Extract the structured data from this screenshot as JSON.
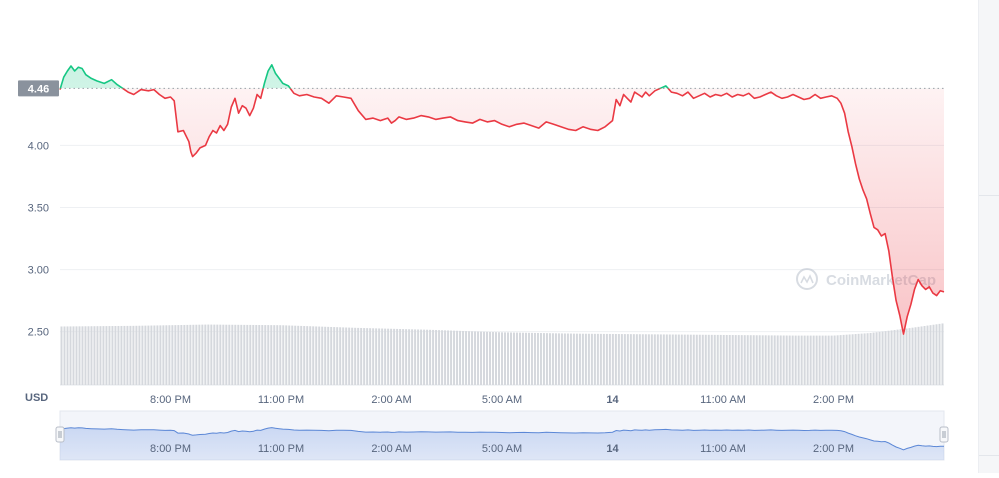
{
  "chart_data": {
    "type": "line",
    "currency_label": "USD",
    "reference_value": 4.46,
    "reference_label": "4.46",
    "y_ticks": [
      {
        "value": 4.0,
        "label": "4.00"
      },
      {
        "value": 3.5,
        "label": "3.50"
      },
      {
        "value": 3.0,
        "label": "3.00"
      },
      {
        "value": 2.5,
        "label": "2.50"
      }
    ],
    "ylim": [
      2.07,
      4.93
    ],
    "x_ticks": [
      {
        "t": 3,
        "label": "8:00 PM"
      },
      {
        "t": 6,
        "label": "11:00 PM"
      },
      {
        "t": 9,
        "label": "2:00 AM"
      },
      {
        "t": 12,
        "label": "5:00 AM"
      },
      {
        "t": 15,
        "label": "14"
      },
      {
        "t": 18,
        "label": "11:00 AM"
      },
      {
        "t": 21,
        "label": "2:00 PM"
      }
    ],
    "x_range_hours": [
      0,
      24
    ],
    "watermark": "CoinMarketCap",
    "colors": {
      "up": "#16c784",
      "down": "#ea3943",
      "volume": "#d5d8dd",
      "navigator": "#5b87d6"
    },
    "series": [
      {
        "x": [
          0,
          0.1,
          0.2,
          0.3,
          0.4,
          0.5,
          0.6,
          0.7,
          0.85,
          1.0,
          1.2,
          1.4,
          1.55,
          1.7,
          1.85,
          2.0,
          2.2,
          2.4,
          2.55,
          2.7,
          2.85,
          3.0,
          3.1,
          3.2,
          3.35,
          3.5,
          3.55,
          3.6,
          3.7,
          3.8,
          3.95,
          4.05,
          4.15,
          4.25,
          4.35,
          4.45,
          4.55,
          4.65,
          4.75,
          4.85,
          4.95,
          5.05,
          5.15,
          5.25,
          5.35,
          5.45,
          5.55,
          5.65,
          5.75,
          5.85,
          5.95,
          6.05,
          6.2,
          6.35,
          6.5,
          6.7,
          6.9,
          7.1,
          7.3,
          7.5,
          7.7,
          7.9,
          8.1,
          8.3,
          8.5,
          8.7,
          8.9,
          9.0,
          9.1,
          9.2,
          9.4,
          9.6,
          9.8,
          10.0,
          10.2,
          10.4,
          10.6,
          10.8,
          11.0,
          11.2,
          11.4,
          11.6,
          11.8,
          12.0,
          12.2,
          12.4,
          12.6,
          12.8,
          13.0,
          13.2,
          13.4,
          13.6,
          13.8,
          14.0,
          14.2,
          14.4,
          14.6,
          14.8,
          15.0,
          15.1,
          15.2,
          15.3,
          15.4,
          15.5,
          15.6,
          15.7,
          15.8,
          15.9,
          16.0,
          16.15,
          16.3,
          16.45,
          16.6,
          16.75,
          16.9,
          17.05,
          17.2,
          17.35,
          17.5,
          17.65,
          17.8,
          17.95,
          18.1,
          18.25,
          18.4,
          18.55,
          18.7,
          18.85,
          19.0,
          19.15,
          19.3,
          19.45,
          19.6,
          19.75,
          19.9,
          20.05,
          20.2,
          20.35,
          20.5,
          20.65,
          20.8,
          20.95,
          21.1,
          21.2,
          21.3,
          21.4,
          21.5,
          21.6,
          21.7,
          21.8,
          21.9,
          22.0,
          22.1,
          22.2,
          22.3,
          22.4,
          22.5,
          22.6,
          22.7,
          22.8,
          22.9,
          23.0,
          23.1,
          23.2,
          23.3,
          23.4,
          23.5,
          23.6,
          23.7,
          23.8,
          23.9,
          24.0
        ],
        "values": [
          4.45,
          4.55,
          4.6,
          4.64,
          4.6,
          4.63,
          4.62,
          4.57,
          4.54,
          4.52,
          4.5,
          4.53,
          4.49,
          4.46,
          4.43,
          4.41,
          4.45,
          4.44,
          4.45,
          4.41,
          4.38,
          4.39,
          4.36,
          4.11,
          4.12,
          4.03,
          3.95,
          3.91,
          3.94,
          3.98,
          4.0,
          4.07,
          4.12,
          4.1,
          4.16,
          4.12,
          4.17,
          4.31,
          4.38,
          4.26,
          4.32,
          4.3,
          4.24,
          4.3,
          4.41,
          4.38,
          4.5,
          4.6,
          4.65,
          4.58,
          4.54,
          4.5,
          4.48,
          4.42,
          4.4,
          4.41,
          4.39,
          4.38,
          4.34,
          4.4,
          4.39,
          4.38,
          4.28,
          4.21,
          4.22,
          4.2,
          4.22,
          4.18,
          4.2,
          4.23,
          4.21,
          4.22,
          4.24,
          4.23,
          4.21,
          4.22,
          4.23,
          4.2,
          4.19,
          4.18,
          4.21,
          4.19,
          4.2,
          4.17,
          4.15,
          4.17,
          4.18,
          4.16,
          4.14,
          4.19,
          4.17,
          4.15,
          4.13,
          4.12,
          4.15,
          4.13,
          4.12,
          4.15,
          4.2,
          4.37,
          4.32,
          4.41,
          4.38,
          4.35,
          4.43,
          4.41,
          4.39,
          4.43,
          4.4,
          4.44,
          4.46,
          4.48,
          4.43,
          4.42,
          4.4,
          4.43,
          4.38,
          4.4,
          4.42,
          4.39,
          4.41,
          4.4,
          4.42,
          4.39,
          4.41,
          4.4,
          4.42,
          4.38,
          4.39,
          4.41,
          4.43,
          4.4,
          4.38,
          4.39,
          4.41,
          4.39,
          4.37,
          4.38,
          4.41,
          4.38,
          4.39,
          4.4,
          4.38,
          4.34,
          4.26,
          4.11,
          3.99,
          3.85,
          3.73,
          3.64,
          3.57,
          3.45,
          3.34,
          3.32,
          3.27,
          3.29,
          3.15,
          2.94,
          2.75,
          2.63,
          2.48,
          2.62,
          2.72,
          2.84,
          2.92,
          2.87,
          2.84,
          2.86,
          2.81,
          2.79,
          2.83,
          2.82
        ]
      }
    ],
    "volume": {
      "x": [
        0,
        2,
        4,
        6,
        8,
        10,
        12,
        14,
        16,
        18,
        20,
        21,
        22,
        23,
        24
      ],
      "values": [
        0.9,
        0.91,
        0.93,
        0.92,
        0.88,
        0.85,
        0.81,
        0.79,
        0.78,
        0.77,
        0.76,
        0.76,
        0.8,
        0.87,
        0.95
      ]
    }
  }
}
